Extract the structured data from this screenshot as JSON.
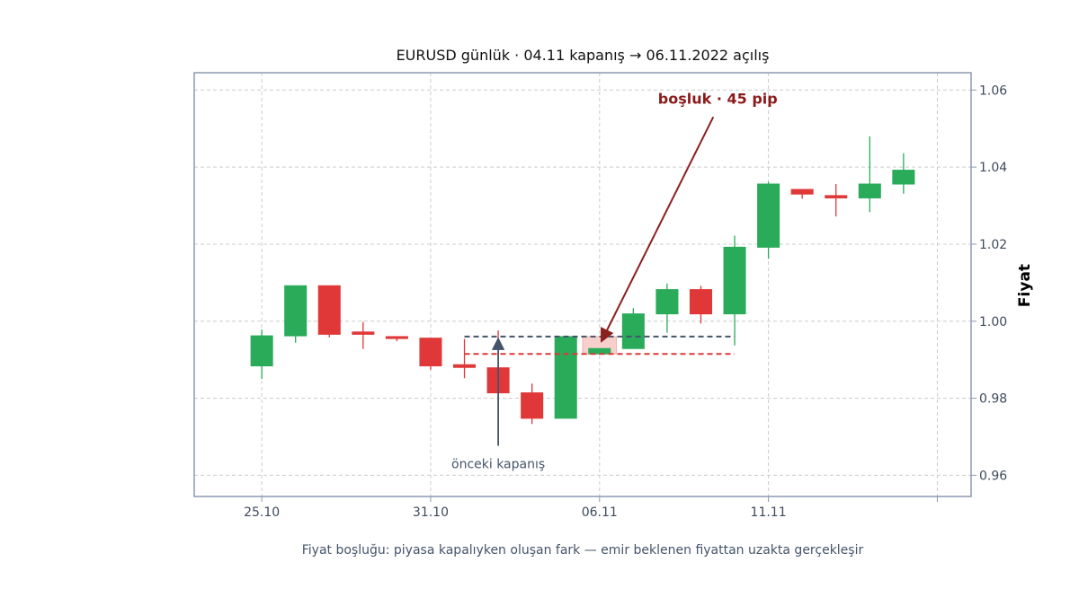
{
  "chart_data": {
    "type": "candlestick",
    "title": "EURUSD günlük · 04.11 kapanış → 06.11.2022 açılış",
    "ylabel": "Fiyat",
    "xlabel": "",
    "caption": "Fiyat boşluğu: piyasa kapalıyken oluşan fark — emir beklenen fiyattan uzakta gerçekleşir",
    "x_tick_labels": [
      "25.10",
      "31.10",
      "06.11",
      "11.11",
      ""
    ],
    "x_tick_index": [
      0,
      5,
      10,
      15,
      20
    ],
    "y_ticks": [
      0.96,
      0.98,
      1.0,
      1.02,
      1.04,
      1.06
    ],
    "y_tick_labels": [
      "0.96",
      "0.98",
      "1.00",
      "1.02",
      "1.04",
      "1.06"
    ],
    "ylim": [
      0.9545,
      1.0645
    ],
    "x_range": [
      -2,
      21
    ],
    "grid": true,
    "axis_side": "right",
    "colors": {
      "up": "#2aab5a",
      "down": "#e03838",
      "frame": "#8a9ab0",
      "grid": "#cccccc",
      "prev_close_line": "#44546a",
      "gap_open_line": "#d93a3a",
      "gap_band": "#f7d0cc",
      "arrow_gap": "#8b2020",
      "arrow_prev": "#44546a"
    },
    "candles": [
      {
        "open": 0.9884,
        "high": 0.9978,
        "low": 0.985,
        "close": 0.9962
      },
      {
        "open": 0.9962,
        "high": 1.0092,
        "low": 0.9944,
        "close": 1.0092
      },
      {
        "open": 1.0092,
        "high": 1.0092,
        "low": 0.9958,
        "close": 0.9966
      },
      {
        "open": 0.9972,
        "high": 0.9998,
        "low": 0.9928,
        "close": 0.9966
      },
      {
        "open": 0.996,
        "high": 0.996,
        "low": 0.9948,
        "close": 0.9955
      },
      {
        "open": 0.9956,
        "high": 0.9956,
        "low": 0.9874,
        "close": 0.9884
      },
      {
        "open": 0.9887,
        "high": 0.9954,
        "low": 0.9852,
        "close": 0.988
      },
      {
        "open": 0.9879,
        "high": 0.9976,
        "low": 0.9814,
        "close": 0.9814
      },
      {
        "open": 0.9814,
        "high": 0.9838,
        "low": 0.9733,
        "close": 0.9748
      },
      {
        "open": 0.9748,
        "high": 0.996,
        "low": 0.9748,
        "close": 0.996
      },
      {
        "open": 0.9915,
        "high": 0.9929,
        "low": 0.9913,
        "close": 0.9929
      },
      {
        "open": 0.9929,
        "high": 1.0034,
        "low": 0.9929,
        "close": 1.0019
      },
      {
        "open": 1.0019,
        "high": 1.0098,
        "low": 0.997,
        "close": 1.0082
      },
      {
        "open": 1.0082,
        "high": 1.0092,
        "low": 0.9994,
        "close": 1.0019
      },
      {
        "open": 1.0019,
        "high": 1.0222,
        "low": 0.9937,
        "close": 1.0192
      },
      {
        "open": 1.0192,
        "high": 1.0362,
        "low": 1.0162,
        "close": 1.0356
      },
      {
        "open": 1.0342,
        "high": 1.0342,
        "low": 1.0318,
        "close": 1.033
      },
      {
        "open": 1.0326,
        "high": 1.0356,
        "low": 1.0272,
        "close": 1.032
      },
      {
        "open": 1.032,
        "high": 1.048,
        "low": 1.0283,
        "close": 1.0356
      },
      {
        "open": 1.0356,
        "high": 1.0436,
        "low": 1.0331,
        "close": 1.0392
      }
    ],
    "prev_close": {
      "value": 0.996,
      "from_index": 6,
      "to_index": 14
    },
    "gap_open": {
      "value": 0.9915,
      "from_index": 6,
      "to_index": 14
    },
    "gap_band": {
      "index": 10,
      "low": 0.9915,
      "high": 0.996
    },
    "annotations": [
      {
        "id": "gap",
        "text": "boşluk · 45 pip",
        "text_x": 13.5,
        "text_y": 1.0565,
        "arrow_x": 10.0,
        "arrow_y": 0.9938
      },
      {
        "id": "prev",
        "text": "önceki kapanış",
        "text_x": 7.0,
        "text_y": 0.963,
        "arrow_x": 7.0,
        "arrow_y": 0.996
      }
    ]
  }
}
